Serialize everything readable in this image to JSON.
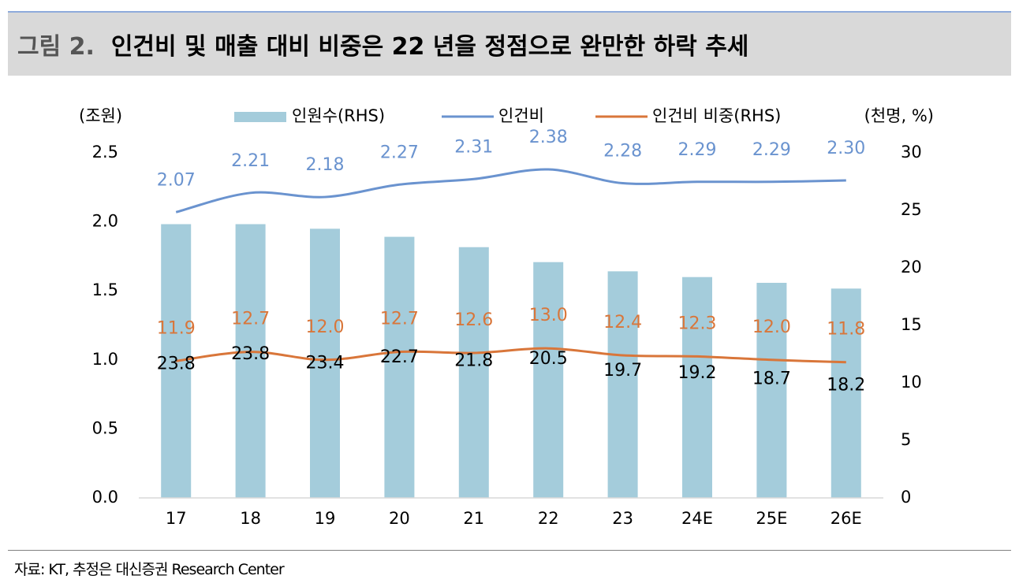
{
  "title": {
    "figure_no": "그림 2.",
    "text": "인건비 및 매출 대비 비중은 22 년을 정점으로 완만한 하락 추세"
  },
  "source": "자료: KT, 추정은 대신증권 Research Center",
  "colors": {
    "bars": "#a4ccdb",
    "labor_cost": "#6a93cf",
    "ratio": "#d9763a",
    "title_bg": "#d9d9d9"
  },
  "chart_data": {
    "type": "bar",
    "categories": [
      "17",
      "18",
      "19",
      "20",
      "21",
      "22",
      "23",
      "24E",
      "25E",
      "26E"
    ],
    "left_axis": {
      "unit": "(조원)",
      "ticks": [
        "0.0",
        "0.5",
        "1.0",
        "1.5",
        "2.0",
        "2.5"
      ],
      "range": [
        0,
        2.5
      ]
    },
    "right_axis": {
      "unit": "(천명, %)",
      "ticks": [
        "0",
        "5",
        "10",
        "15",
        "20",
        "25",
        "30"
      ],
      "range": [
        0,
        30
      ]
    },
    "legend": {
      "placement": "top",
      "entries": [
        "인원수(RHS)",
        "인건비",
        "인건비 비중(RHS)"
      ]
    },
    "series": [
      {
        "name": "인원수(RHS)",
        "type": "bar",
        "axis": "right",
        "values": [
          23.8,
          23.8,
          23.4,
          22.7,
          21.8,
          20.5,
          19.7,
          19.2,
          18.7,
          18.2
        ],
        "labels": [
          "23.8",
          "23.8",
          "23.4",
          "22.7",
          "21.8",
          "20.5",
          "19.7",
          "19.2",
          "18.7",
          "18.2"
        ]
      },
      {
        "name": "인건비",
        "type": "line",
        "axis": "left",
        "values": [
          2.07,
          2.21,
          2.18,
          2.27,
          2.31,
          2.38,
          2.28,
          2.29,
          2.29,
          2.3
        ],
        "labels": [
          "2.07",
          "2.21",
          "2.18",
          "2.27",
          "2.31",
          "2.38",
          "2.28",
          "2.29",
          "2.29",
          "2.30"
        ]
      },
      {
        "name": "인건비 비중(RHS)",
        "type": "line",
        "axis": "right",
        "values": [
          11.9,
          12.7,
          12.0,
          12.7,
          12.6,
          13.0,
          12.4,
          12.3,
          12.0,
          11.8
        ],
        "labels": [
          "11.9",
          "12.7",
          "12.0",
          "12.7",
          "12.6",
          "13.0",
          "12.4",
          "12.3",
          "12.0",
          "11.8"
        ]
      }
    ]
  }
}
